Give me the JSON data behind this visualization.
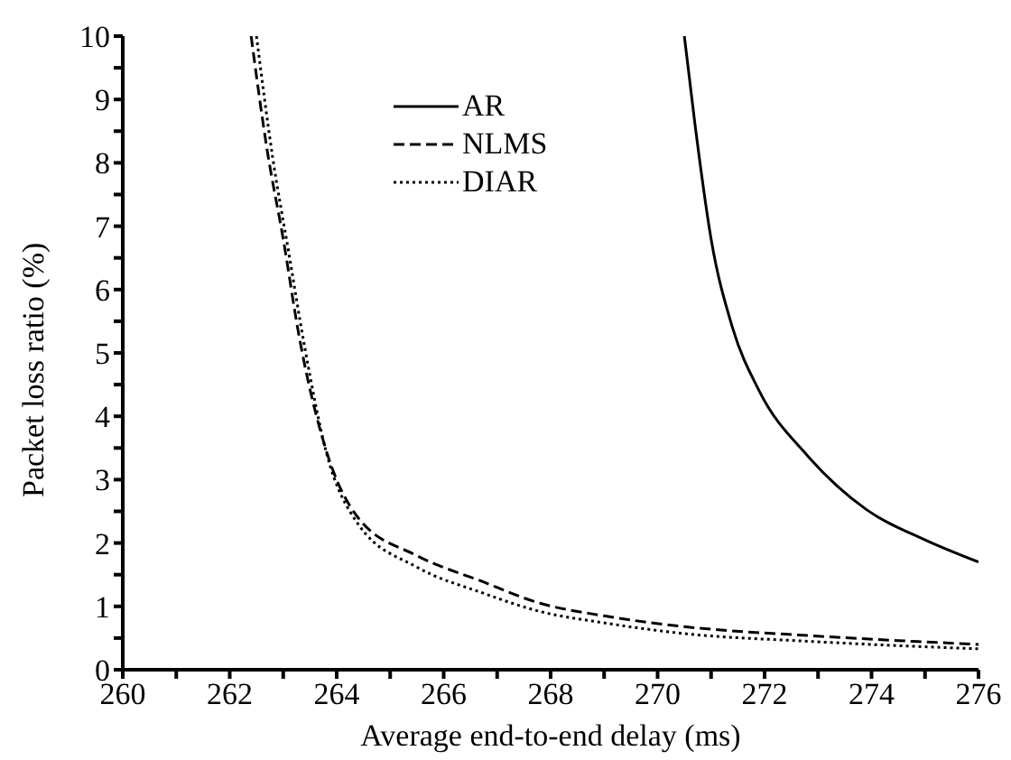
{
  "chart_data": {
    "type": "line",
    "xlabel": "Average end-to-end delay (ms)",
    "ylabel": "Packet loss ratio (%)",
    "xlim": [
      260,
      276
    ],
    "ylim": [
      0,
      10
    ],
    "xticks": [
      260,
      {
        "value": 261,
        "label": null
      },
      262,
      {
        "value": 263,
        "label": null
      },
      264,
      {
        "value": 265,
        "label": null
      },
      266,
      {
        "value": 267,
        "label": null
      },
      268,
      {
        "value": 269,
        "label": null
      },
      270,
      {
        "value": 271,
        "label": null
      },
      272,
      {
        "value": 273,
        "label": null
      },
      274,
      {
        "value": 275,
        "label": null
      },
      276
    ],
    "yticks": [
      0,
      {
        "value": 0.5,
        "label": null
      },
      1,
      {
        "value": 1.5,
        "label": null
      },
      2,
      {
        "value": 2.5,
        "label": null
      },
      3,
      {
        "value": 3.5,
        "label": null
      },
      4,
      {
        "value": 4.5,
        "label": null
      },
      5,
      {
        "value": 5.5,
        "label": null
      },
      6,
      {
        "value": 6.5,
        "label": null
      },
      7,
      {
        "value": 7.5,
        "label": null
      },
      8,
      {
        "value": 8.5,
        "label": null
      },
      9,
      {
        "value": 9.5,
        "label": null
      },
      10
    ],
    "grid": false,
    "legend": "top",
    "marker": "none",
    "series": [
      {
        "name": "AR",
        "color": "#000000",
        "line_style": "solid",
        "x": [
          270.5,
          270.7,
          271.0,
          271.4,
          271.9,
          272.8,
          273.9,
          275.0,
          276
        ],
        "values": [
          10,
          8.6,
          6.8,
          5.4,
          4.4,
          3.38,
          2.53,
          2.05,
          1.7
        ]
      },
      {
        "name": "NLMS",
        "color": "#000000",
        "line_style": "dashed",
        "x": [
          262.4,
          262.7,
          263.0,
          263.3,
          263.8,
          264.4,
          265.5,
          266.7,
          267.8,
          269.0,
          270.5,
          272.8,
          274.5,
          276
        ],
        "values": [
          10,
          8.2,
          6.8,
          5.25,
          3.47,
          2.4,
          1.8,
          1.4,
          1.05,
          0.85,
          0.68,
          0.54,
          0.46,
          0.4
        ]
      },
      {
        "name": "DIAR",
        "color": "#000000",
        "line_style": "dotted",
        "x": [
          262.5,
          262.8,
          263.1,
          263.4,
          263.8,
          264.4,
          265.5,
          266.7,
          267.8,
          269.0,
          270.5,
          272.8,
          274.5,
          276
        ],
        "values": [
          10,
          8.1,
          6.6,
          5.1,
          3.45,
          2.3,
          1.62,
          1.22,
          0.92,
          0.74,
          0.57,
          0.45,
          0.38,
          0.33
        ]
      }
    ]
  }
}
